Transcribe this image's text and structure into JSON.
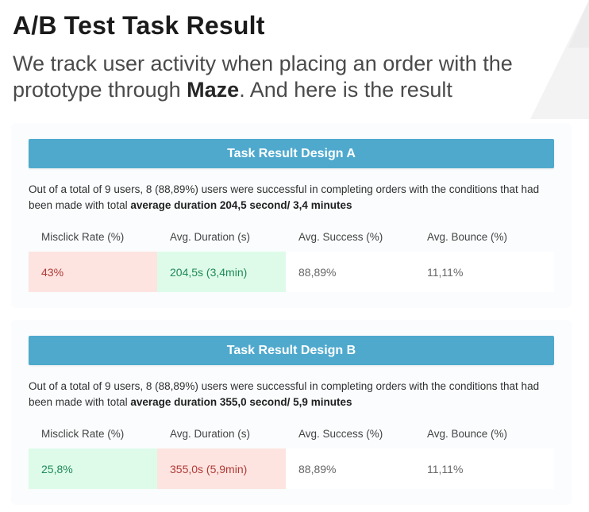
{
  "header": {
    "title": "A/B Test Task Result",
    "subtitle_pre": "We track user activity when placing an order with the prototype through ",
    "subtitle_bold": "Maze",
    "subtitle_post": ". And here is the result"
  },
  "colors": {
    "header_bar": "#4fa9cd",
    "negative_bg": "#fde4e1",
    "negative_text": "#b03a35",
    "positive_bg": "#defbea",
    "positive_text": "#1f8a56"
  },
  "metric_labels": [
    "Misclick Rate (%)",
    "Avg. Duration (s)",
    "Avg. Success (%)",
    "Avg. Bounce (%)"
  ],
  "design_a": {
    "heading": "Task Result Design A",
    "desc_pre": "Out of a total of 9 users, 8 (88,89%) users were successful in completing orders with the conditions that had been made with total ",
    "desc_bold": "average duration 204,5 second/ 3,4 minutes",
    "values": [
      "43%",
      "204,5s (3,4min)",
      "88,89%",
      "11,11%"
    ],
    "highlights": [
      "negative",
      "positive",
      "none",
      "none"
    ]
  },
  "design_b": {
    "heading": "Task Result Design B",
    "desc_pre": "Out of a total of 9 users, 8 (88,89%) users were successful in completing orders with the conditions that had been made with total ",
    "desc_bold": "average duration 355,0 second/ 5,9 minutes",
    "values": [
      "25,8%",
      "355,0s (5,9min)",
      "88,89%",
      "11,11%"
    ],
    "highlights": [
      "positive",
      "negative",
      "none",
      "none"
    ]
  }
}
